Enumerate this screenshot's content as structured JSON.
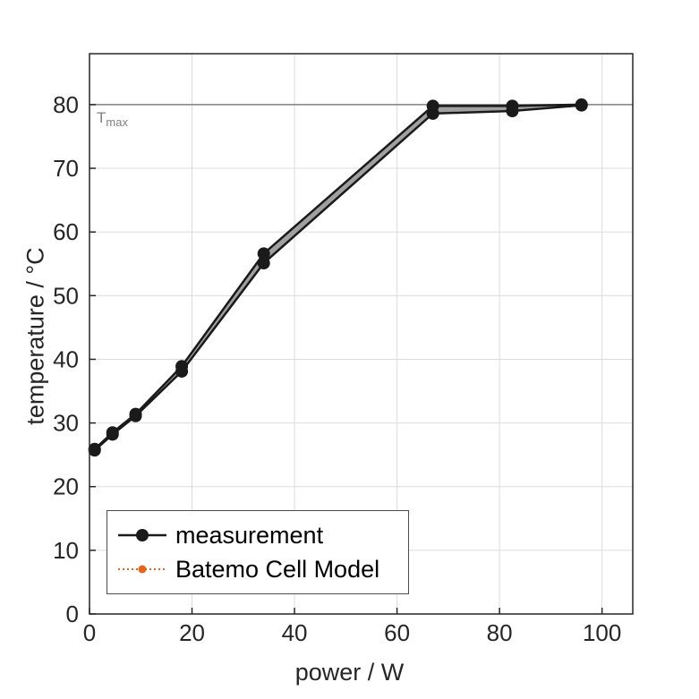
{
  "figure": {
    "background": "#ffffff"
  },
  "chart_data": {
    "type": "line",
    "title": "",
    "xlabel": "power / W",
    "ylabel": "temperature / °C",
    "xlim": [
      0,
      106
    ],
    "ylim": [
      0,
      88
    ],
    "xticks": [
      0,
      20,
      40,
      60,
      80,
      100
    ],
    "yticks": [
      0,
      10,
      20,
      30,
      40,
      50,
      60,
      70,
      80
    ],
    "grid": true,
    "grid_color": "#dcdcdc",
    "axis_color": "#262626",
    "tick_label_color": "#262626",
    "tmax_line": {
      "y": 80,
      "color": "#808080",
      "label_main": "T",
      "label_sub": "max"
    },
    "band_fill_color": "#a0a0a0",
    "series": [
      {
        "name": "measurement",
        "color": "#1a1a1a",
        "line": "solid",
        "marker": "filled-circle",
        "x": [
          1,
          4.5,
          9,
          18,
          34,
          67,
          82.5,
          96
        ],
        "y_upper": [
          25.9,
          28.5,
          31.4,
          38.9,
          56.6,
          79.8,
          79.8,
          80.0
        ],
        "y_lower": [
          25.7,
          28.2,
          31.1,
          38.1,
          55.1,
          78.6,
          79.0,
          79.9
        ]
      },
      {
        "name": "Batemo Cell Model",
        "color": "#e8641b",
        "line": "dotted",
        "marker": "small-circle",
        "x": [
          1,
          4.5,
          9,
          18,
          34,
          67,
          82.5,
          96
        ],
        "y": [
          25.9,
          28.5,
          31.4,
          38.9,
          56.6,
          79.8,
          79.8,
          80.0
        ]
      }
    ],
    "legend": {
      "position": "bottom-left-inside",
      "entries": [
        "measurement",
        "Batemo Cell Model"
      ]
    }
  },
  "legend": {
    "measurement_label": "measurement",
    "model_label": "Batemo Cell Model"
  },
  "labels": {
    "xlabel": "power / W",
    "ylabel": "temperature / °C"
  }
}
